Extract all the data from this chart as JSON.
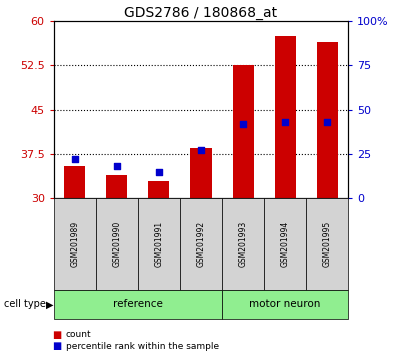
{
  "title": "GDS2786 / 180868_at",
  "samples": [
    "GSM201989",
    "GSM201990",
    "GSM201991",
    "GSM201992",
    "GSM201993",
    "GSM201994",
    "GSM201995"
  ],
  "group_for_sample": [
    "reference",
    "reference",
    "reference",
    "reference",
    "motor neuron",
    "motor neuron",
    "motor neuron"
  ],
  "group_labels": [
    "reference",
    "motor neuron"
  ],
  "group_starts": [
    0,
    4
  ],
  "group_ends": [
    3,
    6
  ],
  "count_values": [
    35.5,
    34.0,
    33.0,
    38.5,
    52.5,
    57.5,
    56.5
  ],
  "percentile_values": [
    22,
    18,
    15,
    27,
    42,
    43,
    43
  ],
  "ylim_left": [
    30,
    60
  ],
  "ylim_right": [
    0,
    100
  ],
  "yticks_left": [
    30,
    37.5,
    45,
    52.5,
    60
  ],
  "yticks_right": [
    0,
    25,
    50,
    75,
    100
  ],
  "yticklabels_right": [
    "0",
    "25",
    "50",
    "75",
    "100%"
  ],
  "bar_color": "#cc0000",
  "dot_color": "#0000cc",
  "bar_width": 0.5,
  "dot_size": 22,
  "grid_color": "black",
  "tick_color_left": "#cc0000",
  "tick_color_right": "#0000cc",
  "sample_box_color": "#d3d3d3",
  "group_box_color": "#90EE90",
  "legend_items": [
    "count",
    "percentile rank within the sample"
  ],
  "cell_type_label": "cell type",
  "baseline": 30
}
